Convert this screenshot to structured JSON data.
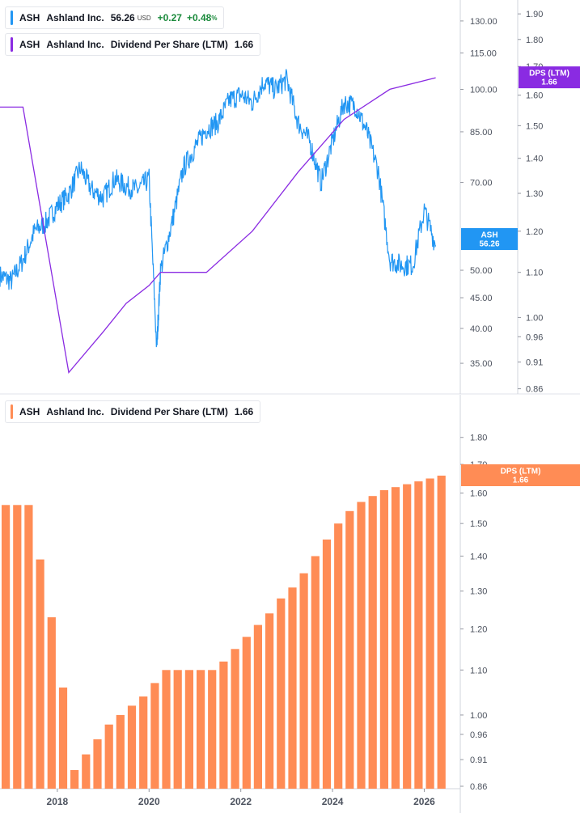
{
  "top_legend": {
    "ticker": "ASH",
    "company": "Ashland Inc.",
    "price": "56.26",
    "currency": "USD",
    "change": "+0.27",
    "change_pct": "+0.48",
    "pct_sign": "%",
    "ticker_color": "#2196f3"
  },
  "dps_legend": {
    "ticker": "ASH",
    "company": "Ashland Inc.",
    "metric": "Dividend Per Share (LTM)",
    "value": "1.66",
    "line_color": "#8a2be2"
  },
  "bottom_legend": {
    "ticker": "ASH",
    "company": "Ashland Inc.",
    "metric": "Dividend Per Share (LTM)",
    "value": "1.66",
    "bar_color": "#ff8c55"
  },
  "price_badge": {
    "label": "ASH",
    "value": "56.26",
    "color": "#2196f3"
  },
  "dps_badge_top": {
    "label": "DPS (LTM)",
    "value": "1.66",
    "color": "#8a2be2"
  },
  "dps_badge_bottom": {
    "label": "DPS (LTM)",
    "value": "1.66",
    "color": "#ff8c55"
  },
  "x_axis_labels": [
    "2018",
    "2020",
    "2022",
    "2024",
    "2026"
  ],
  "chart_data": [
    {
      "type": "line",
      "name": "ASH price",
      "scale": "log",
      "ylim": [
        32,
        140
      ],
      "y_ticks": [
        "130.00",
        "115.00",
        "100.00",
        "85.00",
        "70.00",
        "50.00",
        "45.00",
        "40.00",
        "35.00"
      ],
      "y_tick_values": [
        130,
        115,
        100,
        85,
        70,
        50,
        45,
        40,
        35
      ],
      "x": [
        "2016-10",
        "2017-01",
        "2017-04",
        "2017-07",
        "2017-10",
        "2018-01",
        "2018-04",
        "2018-07",
        "2018-10",
        "2019-01",
        "2019-04",
        "2019-07",
        "2019-10",
        "2020-01",
        "2020-03",
        "2020-04",
        "2020-07",
        "2020-10",
        "2021-01",
        "2021-04",
        "2021-07",
        "2021-10",
        "2022-01",
        "2022-04",
        "2022-07",
        "2022-10",
        "2023-01",
        "2023-04",
        "2023-07",
        "2023-10",
        "2024-01",
        "2024-04",
        "2024-07",
        "2024-10",
        "2025-01",
        "2025-04",
        "2025-07",
        "2025-10",
        "2026-01",
        "2026-04"
      ],
      "values": [
        49,
        48,
        52,
        58,
        60,
        64,
        67,
        74,
        68,
        66,
        71,
        69,
        68,
        71,
        37,
        50,
        60,
        74,
        80,
        86,
        88,
        96,
        98,
        95,
        103,
        100,
        104,
        88,
        82,
        70,
        82,
        95,
        94,
        85,
        73,
        52,
        51,
        51,
        63,
        55
      ]
    },
    {
      "type": "line",
      "name": "Dividend Per Share (LTM)",
      "scale": "log",
      "ylim": [
        0.855,
        1.93
      ],
      "y_ticks": [
        "1.90",
        "1.80",
        "1.70",
        "1.60",
        "1.50",
        "1.40",
        "1.30",
        "1.20",
        "1.10",
        "1.00",
        "0.96",
        "0.91",
        "0.86"
      ],
      "y_tick_values": [
        1.9,
        1.8,
        1.7,
        1.6,
        1.5,
        1.4,
        1.3,
        1.2,
        1.1,
        1.0,
        0.96,
        0.91,
        0.86
      ],
      "x": [
        "2016-10",
        "2017-04",
        "2018-04",
        "2019-01",
        "2019-07",
        "2020-01",
        "2020-04",
        "2021-04",
        "2022-04",
        "2023-04",
        "2024-04",
        "2025-04",
        "2026-04"
      ],
      "values": [
        1.56,
        1.56,
        0.89,
        0.97,
        1.03,
        1.07,
        1.1,
        1.1,
        1.2,
        1.36,
        1.52,
        1.62,
        1.66
      ]
    },
    {
      "type": "bar",
      "name": "Dividend Per Share (LTM)",
      "scale": "log",
      "ylim": [
        0.86,
        1.93
      ],
      "y_ticks": [
        "1.80",
        "1.70",
        "1.60",
        "1.50",
        "1.40",
        "1.30",
        "1.20",
        "1.10",
        "1.00",
        "0.96",
        "0.91",
        "0.86"
      ],
      "y_tick_values": [
        1.8,
        1.7,
        1.6,
        1.5,
        1.4,
        1.3,
        1.2,
        1.1,
        1.0,
        0.96,
        0.91,
        0.86
      ],
      "categories": [
        "2016-Q3",
        "2016-Q4",
        "2017-Q1",
        "2017-Q2",
        "2017-Q3",
        "2017-Q4",
        "2018-Q1",
        "2018-Q2",
        "2018-Q3",
        "2018-Q4",
        "2019-Q1",
        "2019-Q2",
        "2019-Q3",
        "2019-Q4",
        "2020-Q1",
        "2020-Q2",
        "2020-Q3",
        "2020-Q4",
        "2021-Q1",
        "2021-Q2",
        "2021-Q3",
        "2021-Q4",
        "2022-Q1",
        "2022-Q2",
        "2022-Q3",
        "2022-Q4",
        "2023-Q1",
        "2023-Q2",
        "2023-Q3",
        "2023-Q4",
        "2024-Q1",
        "2024-Q2",
        "2024-Q3",
        "2024-Q4",
        "2025-Q1",
        "2025-Q2",
        "2025-Q3",
        "2025-Q4",
        "2026-Q1",
        "2026-Q2"
      ],
      "values": [
        1.56,
        1.56,
        1.56,
        1.56,
        1.39,
        1.23,
        1.06,
        0.89,
        0.92,
        0.95,
        0.98,
        1.0,
        1.02,
        1.04,
        1.07,
        1.1,
        1.1,
        1.1,
        1.1,
        1.1,
        1.12,
        1.15,
        1.18,
        1.21,
        1.24,
        1.28,
        1.31,
        1.35,
        1.4,
        1.45,
        1.5,
        1.54,
        1.57,
        1.59,
        1.61,
        1.62,
        1.63,
        1.64,
        1.65,
        1.66
      ]
    }
  ]
}
